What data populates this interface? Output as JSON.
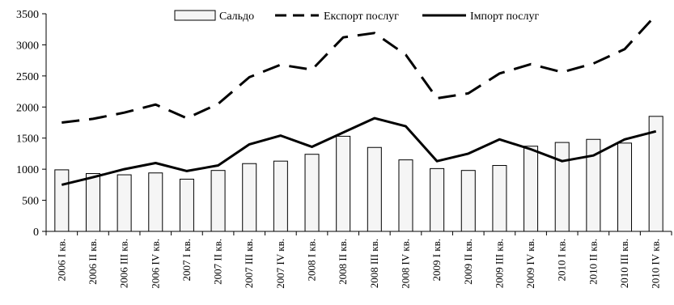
{
  "chart_data": {
    "type": "bar",
    "categories": [
      "2006 I кв.",
      "2006 II кв.",
      "2006 III кв.",
      "2006 IV кв.",
      "2007 I кв.",
      "2007 II кв.",
      "2007 III кв.",
      "2007 IV кв.",
      "2008 I кв.",
      "2008 II кв.",
      "2008 III кв.",
      "2008 IV кв.",
      "2009 I кв.",
      "2009 II кв.",
      "2009 III кв.",
      "2009 IV кв.",
      "2010 I кв.",
      "2010 II кв.",
      "2010 III кв.",
      "2010 IV кв."
    ],
    "series": [
      {
        "name": "Сальдо",
        "kind": "bar",
        "values": [
          990,
          930,
          910,
          940,
          840,
          980,
          1090,
          1130,
          1240,
          1530,
          1350,
          1150,
          1010,
          980,
          1060,
          1370,
          1430,
          1480,
          1420,
          1850
        ]
      },
      {
        "name": "Експорт послуг",
        "kind": "line",
        "style": "dashed",
        "values": [
          1750,
          1810,
          1910,
          2040,
          1820,
          2050,
          2480,
          2680,
          2600,
          3120,
          3190,
          2840,
          2140,
          2220,
          2540,
          2690,
          2560,
          2700,
          2930,
          3480
        ]
      },
      {
        "name": "Імпорт послуг",
        "kind": "line",
        "style": "solid",
        "values": [
          750,
          870,
          1000,
          1100,
          970,
          1060,
          1400,
          1540,
          1360,
          1590,
          1820,
          1690,
          1130,
          1250,
          1480,
          1320,
          1130,
          1220,
          1480,
          1610
        ]
      }
    ],
    "ylim": [
      0,
      3500
    ],
    "yticks": [
      0,
      500,
      1000,
      1500,
      2000,
      2500,
      3000,
      3500
    ],
    "legend_position": "top",
    "grid": false,
    "colors": {
      "bar_fill": "#f5f5f5",
      "bar_stroke": "#000000",
      "line": "#000000"
    }
  }
}
